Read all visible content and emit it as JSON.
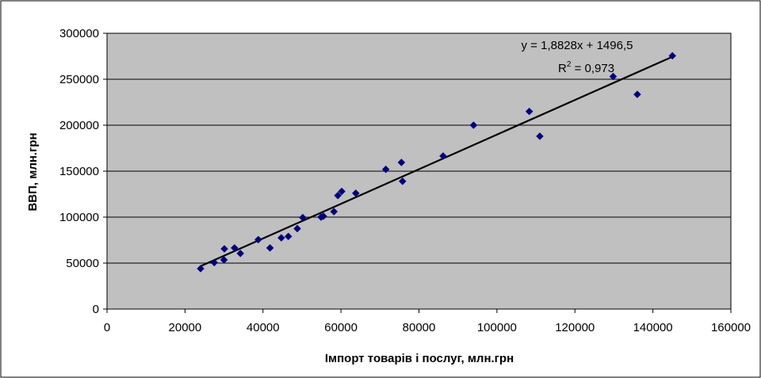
{
  "chart_data": {
    "type": "scatter",
    "title": "",
    "xlabel": "Імпорт товарів і послуг, млн.грн",
    "ylabel": "ВВП, млн.грн",
    "xlim": [
      0,
      160000
    ],
    "ylim": [
      0,
      300000
    ],
    "xticks": [
      0,
      20000,
      40000,
      60000,
      80000,
      100000,
      120000,
      140000,
      160000
    ],
    "yticks": [
      0,
      50000,
      100000,
      150000,
      200000,
      250000,
      300000
    ],
    "grid": true,
    "legend": "none",
    "colors": {
      "plot_bg": "#c0c0c0",
      "marker": "#000080",
      "trendline": "#000000",
      "grid": "#000000",
      "border": "#000000"
    },
    "series": [
      {
        "marker": "diamond",
        "x": [
          24000,
          27500,
          30000,
          30100,
          32700,
          34200,
          38800,
          41800,
          44700,
          46500,
          48800,
          50200,
          54900,
          55500,
          58200,
          59200,
          60200,
          63800,
          71500,
          75500,
          75800,
          86200,
          94000,
          108300,
          111000,
          129800,
          136000,
          145000
        ],
        "y": [
          44000,
          50500,
          53500,
          65500,
          66500,
          60500,
          75500,
          66500,
          77500,
          79000,
          87500,
          99500,
          100000,
          101000,
          106000,
          123500,
          128000,
          126000,
          152000,
          159500,
          139000,
          166500,
          200000,
          215000,
          188000,
          253000,
          233500,
          275500
        ]
      }
    ],
    "trendline": {
      "type": "linear",
      "slope": 1.8828,
      "intercept": 1496.5,
      "x_range": [
        24000,
        145000
      ],
      "equation_label": "y = 1,8828x + 1496,5",
      "r2_prefix": "R",
      "r2_sup": "2",
      "r2_value": " = 0,973"
    }
  }
}
